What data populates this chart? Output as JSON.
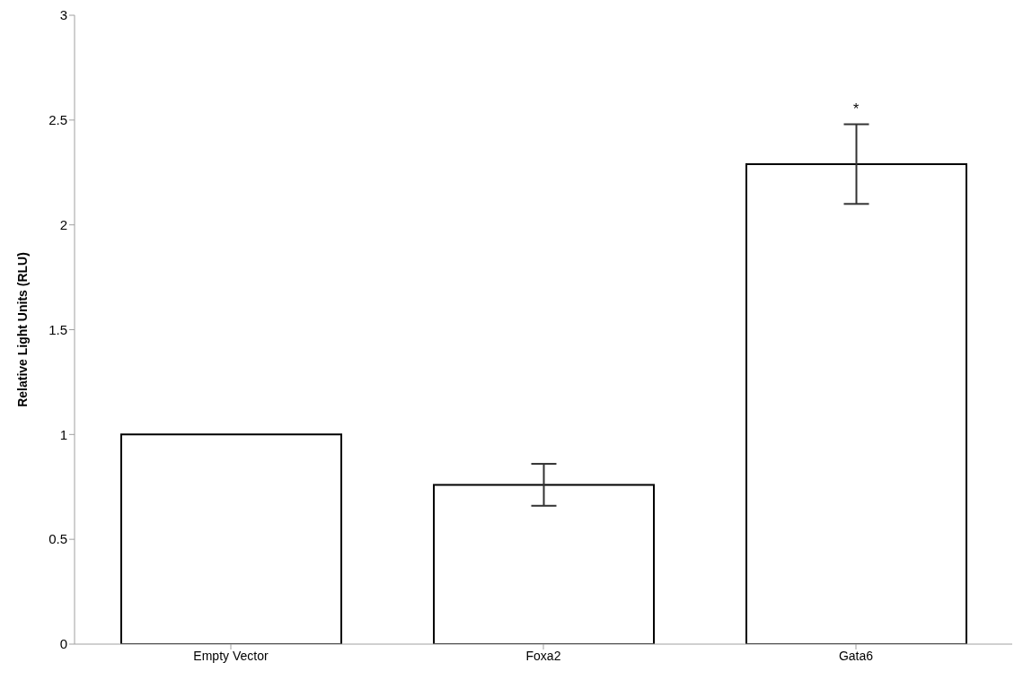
{
  "chart_data": {
    "type": "bar",
    "ylabel": "Relative Light Units (RLU)",
    "categories": [
      "Empty Vector",
      "Foxa2",
      "Gata6"
    ],
    "values": [
      1,
      0.76,
      2.29
    ],
    "errors": [
      null,
      0.1,
      0.19
    ],
    "color": "#ffffff",
    "ylim": [
      0,
      3
    ],
    "yticks": [
      0,
      0.5,
      1,
      1.5,
      2,
      2.5,
      3
    ],
    "grid": false,
    "annotations": [
      "*"
    ]
  }
}
